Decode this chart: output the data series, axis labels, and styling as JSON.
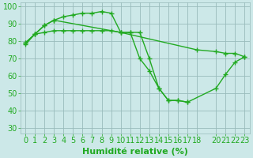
{
  "xlabel": "Humidité relative (%)",
  "background_color": "#cce8e8",
  "grid_color": "#99bbbb",
  "line_color": "#22aa22",
  "xlim": [
    -0.5,
    23.5
  ],
  "ylim": [
    27,
    102
  ],
  "yticks": [
    30,
    40,
    50,
    60,
    70,
    80,
    90,
    100
  ],
  "xticks": [
    0,
    1,
    2,
    3,
    4,
    5,
    6,
    7,
    8,
    9,
    10,
    11,
    12,
    13,
    14,
    15,
    16,
    17,
    18,
    20,
    21,
    22,
    23
  ],
  "curve1_x": [
    0,
    1,
    2,
    3,
    4,
    5,
    6,
    7,
    8,
    9,
    10,
    11,
    12,
    13,
    14,
    15,
    16,
    17
  ],
  "curve1_y": [
    78,
    84,
    89,
    92,
    94,
    95,
    96,
    96,
    97,
    96,
    85,
    85,
    85,
    70,
    53,
    46,
    46,
    45
  ],
  "curve2_x": [
    0,
    1,
    2,
    3,
    4,
    5,
    6,
    7,
    8,
    9,
    10,
    18,
    20,
    21,
    22,
    23
  ],
  "curve2_y": [
    79,
    84,
    85,
    86,
    86,
    86,
    86,
    86,
    86,
    86,
    85,
    75,
    74,
    73,
    73,
    71
  ],
  "curve3_x": [
    0,
    1,
    2,
    3,
    10,
    11,
    12,
    13,
    14,
    15,
    16,
    17,
    20,
    21,
    22,
    23
  ],
  "curve3_y": [
    79,
    84,
    89,
    92,
    85,
    85,
    70,
    63,
    53,
    46,
    46,
    45,
    53,
    61,
    68,
    71
  ],
  "marker": "+",
  "markersize": 4,
  "linewidth": 1.0,
  "xlabel_fontsize": 8,
  "tick_fontsize": 7
}
